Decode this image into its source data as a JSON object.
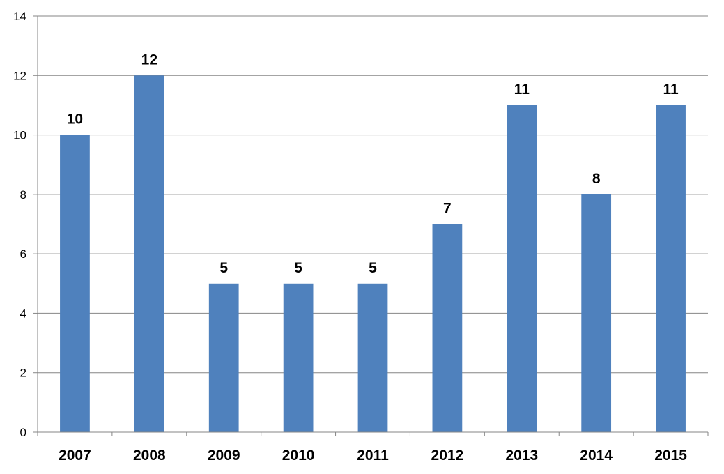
{
  "chart_data": {
    "type": "bar",
    "categories": [
      "2007",
      "2008",
      "2009",
      "2010",
      "2011",
      "2012",
      "2013",
      "2014",
      "2015"
    ],
    "values": [
      10,
      12,
      5,
      5,
      5,
      7,
      11,
      8,
      11
    ],
    "title": "",
    "xlabel": "",
    "ylabel": "",
    "ylim": [
      0,
      14
    ],
    "yticks": [
      0,
      2,
      4,
      6,
      8,
      10,
      12,
      14
    ],
    "grid": true,
    "legend": "none",
    "data_labels": true,
    "colors": {
      "bar": "#4F81BD",
      "grid": "#868686",
      "axis": "#868686"
    }
  }
}
